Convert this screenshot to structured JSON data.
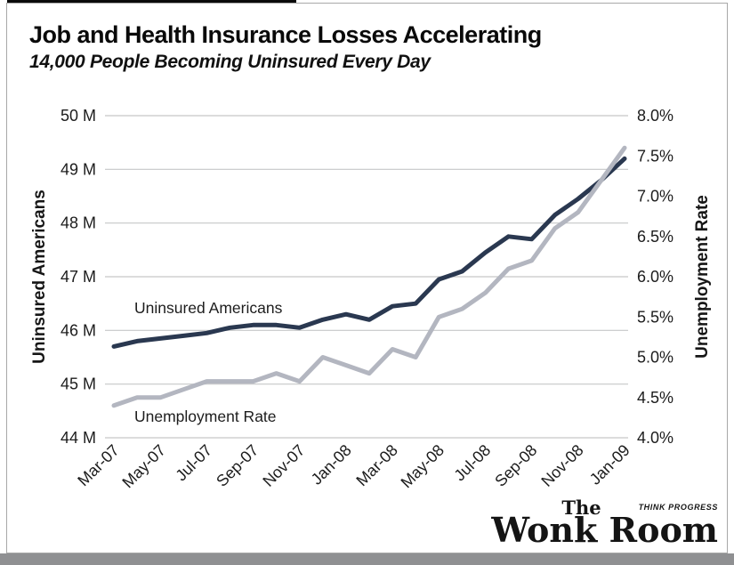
{
  "page": {
    "title": "Job and Health Insurance Losses Accelerating",
    "subtitle": "14,000 People Becoming Uninsured Every Day"
  },
  "logo": {
    "the": "The",
    "wonk_room": "Wonk Room",
    "think_progress": "THINK PROGRESS"
  },
  "colors": {
    "uninsured_line": "#2a3850",
    "unemployment_line": "#b3b6c0",
    "gridline": "#c6c7c8",
    "tick_text": "#1c1c1c"
  },
  "chart_data": {
    "type": "line",
    "title": "Job and Health Insurance Losses Accelerating",
    "subtitle": "14,000 People Becoming Uninsured Every Day",
    "categories": [
      "Mar-07",
      "Apr-07",
      "May-07",
      "Jun-07",
      "Jul-07",
      "Aug-07",
      "Sep-07",
      "Oct-07",
      "Nov-07",
      "Dec-07",
      "Jan-08",
      "Feb-08",
      "Mar-08",
      "Apr-08",
      "May-08",
      "Jun-08",
      "Jul-08",
      "Aug-08",
      "Sep-08",
      "Oct-08",
      "Nov-08",
      "Dec-08",
      "Jan-09"
    ],
    "x_ticks": [
      {
        "label": "Mar-07",
        "index": 0
      },
      {
        "label": "May-07",
        "index": 2
      },
      {
        "label": "Jul-07",
        "index": 4
      },
      {
        "label": "Sep-07",
        "index": 6
      },
      {
        "label": "Nov-07",
        "index": 8
      },
      {
        "label": "Jan-08",
        "index": 10
      },
      {
        "label": "Mar-08",
        "index": 12
      },
      {
        "label": "May-08",
        "index": 14
      },
      {
        "label": "Jul-08",
        "index": 16
      },
      {
        "label": "Sep-08",
        "index": 18
      },
      {
        "label": "Nov-08",
        "index": 20
      },
      {
        "label": "Jan-09",
        "index": 22
      }
    ],
    "series": [
      {
        "name": "Uninsured Americans",
        "axis": "left",
        "color": "#2a3850",
        "values": [
          45.7,
          45.8,
          45.85,
          45.9,
          45.95,
          46.05,
          46.1,
          46.1,
          46.05,
          46.2,
          46.3,
          46.2,
          46.45,
          46.5,
          46.95,
          47.1,
          47.45,
          47.75,
          47.7,
          48.15,
          48.45,
          48.8,
          49.2
        ]
      },
      {
        "name": "Unemployment Rate",
        "axis": "right",
        "color": "#b3b6c0",
        "values": [
          4.4,
          4.5,
          4.5,
          4.6,
          4.7,
          4.7,
          4.7,
          4.8,
          4.7,
          5.0,
          4.9,
          4.8,
          5.1,
          5.0,
          5.5,
          5.6,
          5.8,
          6.1,
          6.2,
          6.6,
          6.8,
          7.2,
          7.6
        ]
      }
    ],
    "left_axis": {
      "label": "Uninsured Americans",
      "min": 44,
      "max": 50,
      "ticks": [
        {
          "label": "50 M",
          "value": 50
        },
        {
          "label": "49 M",
          "value": 49
        },
        {
          "label": "48 M",
          "value": 48
        },
        {
          "label": "47 M",
          "value": 47
        },
        {
          "label": "46 M",
          "value": 46
        },
        {
          "label": "45 M",
          "value": 45
        },
        {
          "label": "44 M",
          "value": 44
        }
      ]
    },
    "right_axis": {
      "label": "Unemployment Rate",
      "min": 4.0,
      "max": 8.0,
      "ticks": [
        {
          "label": "8.0%",
          "value": 8.0
        },
        {
          "label": "7.5%",
          "value": 7.5
        },
        {
          "label": "7.0%",
          "value": 7.0
        },
        {
          "label": "6.5%",
          "value": 6.5
        },
        {
          "label": "6.0%",
          "value": 6.0
        },
        {
          "label": "5.5%",
          "value": 5.5
        },
        {
          "label": "5.0%",
          "value": 5.0
        },
        {
          "label": "4.5%",
          "value": 4.5
        },
        {
          "label": "4.0%",
          "value": 4.0
        }
      ]
    },
    "grid": "horizontal-only",
    "legend_position": "in-plot-annotations",
    "annotations": [
      {
        "text": "Uninsured Americans",
        "series": 0
      },
      {
        "text": "Unemployment Rate",
        "series": 1
      }
    ]
  }
}
